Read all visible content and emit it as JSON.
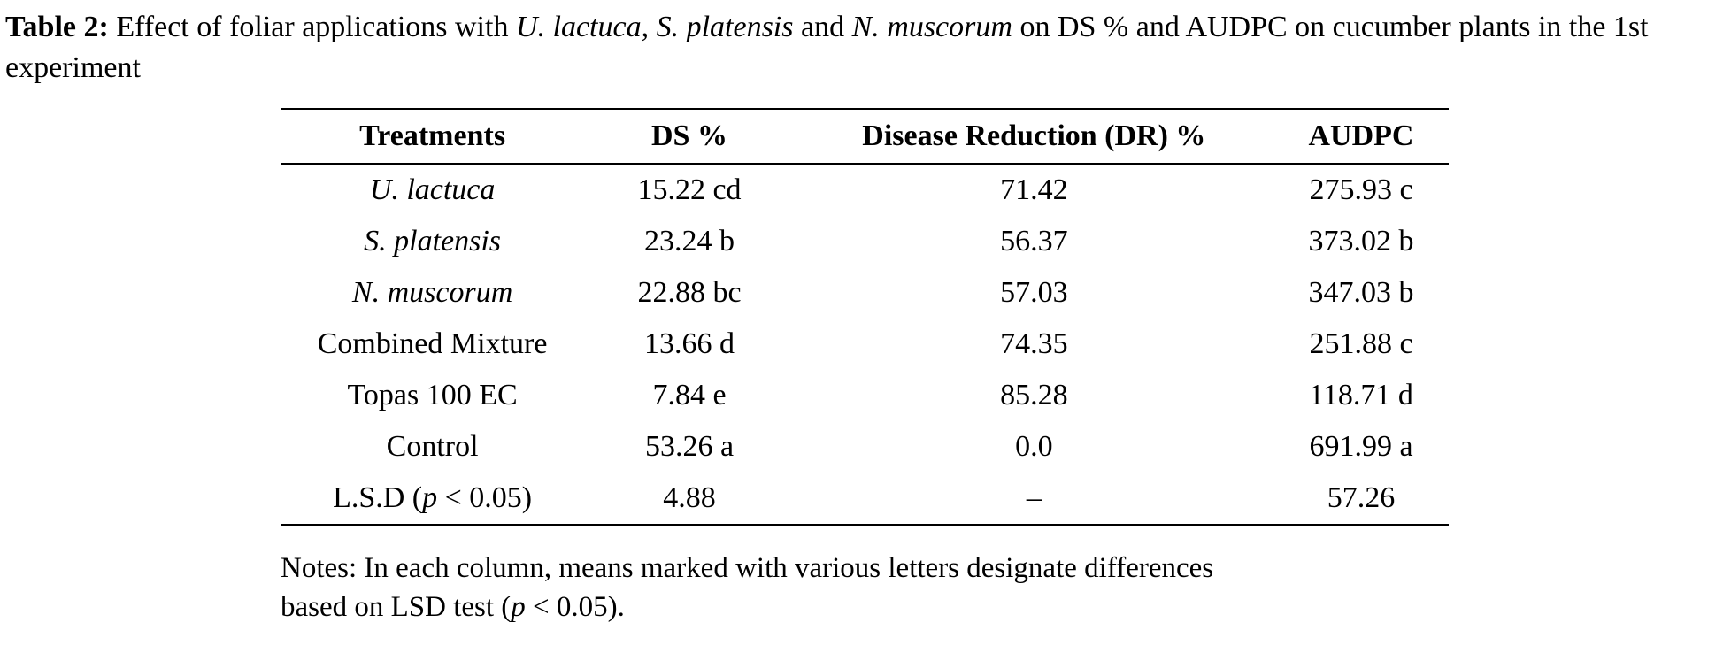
{
  "caption": {
    "label": "Table 2:",
    "part1": " Effect of foliar applications with ",
    "species1": "U. lactuca",
    "sep1": ", ",
    "species2": "S. platensis",
    "sep2": " and ",
    "species3": "N. muscorum",
    "part2": " on DS % and AUDPC on cucumber plants in the 1st experiment"
  },
  "table": {
    "headers": [
      "Treatments",
      "DS %",
      "Disease Reduction (DR) %",
      "AUDPC"
    ],
    "rows": [
      {
        "treatment": "U. lactuca",
        "ds": "15.22 cd",
        "dr": "71.42",
        "audpc": "275.93 c"
      },
      {
        "treatment": "S. platensis",
        "ds": "23.24 b",
        "dr": "56.37",
        "audpc": "373.02 b"
      },
      {
        "treatment": "N. muscorum",
        "ds": "22.88 bc",
        "dr": "57.03",
        "audpc": "347.03 b"
      },
      {
        "treatment": "Combined Mixture",
        "ds": "13.66 d",
        "dr": "74.35",
        "audpc": "251.88 c"
      },
      {
        "treatment": "Topas 100 EC",
        "ds": "7.84 e",
        "dr": "85.28",
        "audpc": "118.71 d"
      },
      {
        "treatment": "Control",
        "ds": "53.26 a",
        "dr": "0.0",
        "audpc": "691.99 a"
      }
    ],
    "lsd_row": {
      "pre": "L.S.D (",
      "p": "p",
      "post": " < 0.05)",
      "ds": "4.88",
      "dr": "–",
      "audpc": "57.26"
    }
  },
  "notes": {
    "line1": "Notes: In each column, means marked with various letters designate differences",
    "line2_pre": "based on LSD test (",
    "p": "p",
    "line2_post": " < 0.05)."
  }
}
